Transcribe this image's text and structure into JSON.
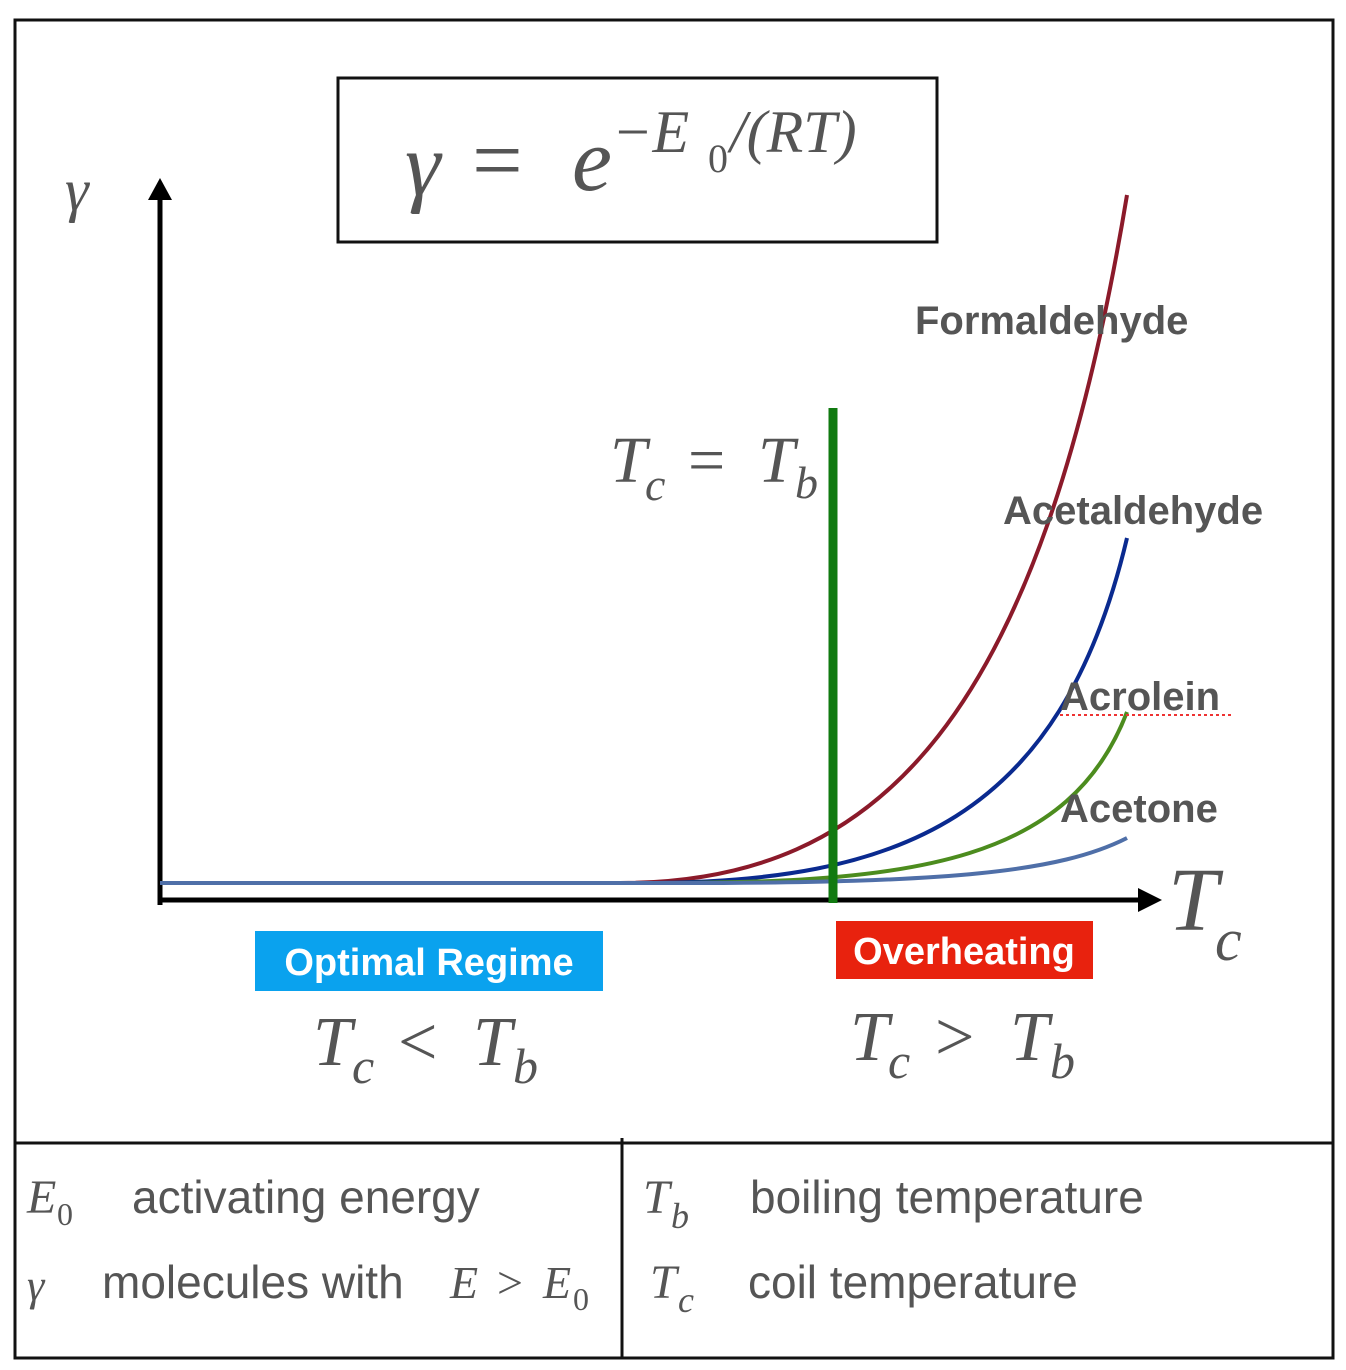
{
  "formula": {
    "lhs": "γ",
    "equals": "=",
    "base": "e",
    "exponent": "−E",
    "exponent_subscript": "0",
    "exponent_rest": "/(RT)"
  },
  "axes": {
    "y_label": "γ",
    "x_label": {
      "symbol": "T",
      "subscript": "c"
    }
  },
  "boundary": {
    "left": {
      "symbol": "T",
      "subscript": "c"
    },
    "operator": "=",
    "right": {
      "symbol": "T",
      "subscript": "b"
    }
  },
  "curves": [
    "Formaldehyde",
    "Acetaldehyde",
    "Acrolein",
    "Acetone"
  ],
  "regimes": [
    {
      "label": "Optimal Regime",
      "condition": {
        "left": {
          "symbol": "T",
          "subscript": "c"
        },
        "operator": "<",
        "right": {
          "symbol": "T",
          "subscript": "b"
        }
      }
    },
    {
      "label": "Overheating",
      "condition": {
        "left": {
          "symbol": "T",
          "subscript": "c"
        },
        "operator": ">",
        "right": {
          "symbol": "T",
          "subscript": "b"
        }
      }
    }
  ],
  "legend": [
    {
      "symbol": "E",
      "subscript": "0",
      "description": "activating energy"
    },
    {
      "symbol": "γ",
      "description": "molecules with",
      "condition": {
        "left": "E",
        "operator": ">",
        "right": "E",
        "right_subscript": "0"
      }
    },
    {
      "symbol": "T",
      "subscript": "b",
      "description": "boiling temperature"
    },
    {
      "symbol": "T",
      "subscript": "c",
      "description": "coil temperature"
    }
  ]
}
